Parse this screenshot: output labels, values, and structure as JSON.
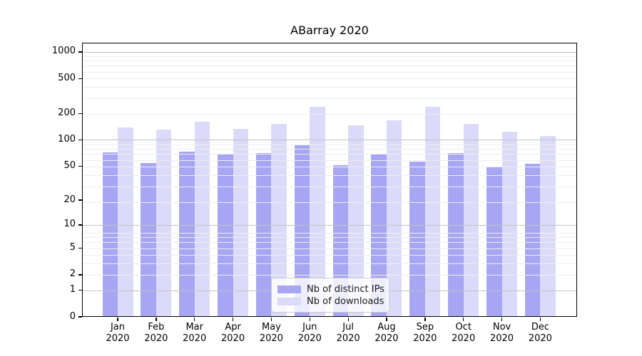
{
  "chart_data": {
    "type": "bar",
    "title": "ABarray 2020",
    "categories": [
      "Jan 2020",
      "Feb 2020",
      "Mar 2020",
      "Apr 2020",
      "May 2020",
      "Jun 2020",
      "Jul 2020",
      "Aug 2020",
      "Sep 2020",
      "Oct 2020",
      "Nov 2020",
      "Dec 2020"
    ],
    "month_labels": [
      "Jan",
      "Feb",
      "Mar",
      "Apr",
      "May",
      "Jun",
      "Jul",
      "Aug",
      "Sep",
      "Oct",
      "Nov",
      "Dec"
    ],
    "year_label": "2020",
    "series": [
      {
        "name": "Nb of distinct IPs",
        "color": "#a6a6f3",
        "values": [
          72,
          54,
          73,
          68,
          70,
          87,
          51,
          68,
          56,
          71,
          49,
          53
        ]
      },
      {
        "name": "Nb of downloads",
        "color": "#dbdbf9",
        "values": [
          138,
          130,
          160,
          133,
          152,
          240,
          146,
          168,
          240,
          152,
          124,
          110
        ]
      }
    ],
    "yscale": "log(v+1)",
    "yticks": [
      0,
      1,
      2,
      5,
      10,
      20,
      50,
      100,
      200,
      500,
      1000
    ],
    "ylim": [
      0,
      1270
    ],
    "grid": "both",
    "legend_position": "lower center",
    "colors": {
      "grid_minor": "#ededed",
      "grid_major": "#c3c3c3",
      "axis": "#000000",
      "legend_border": "#cccccc"
    }
  }
}
